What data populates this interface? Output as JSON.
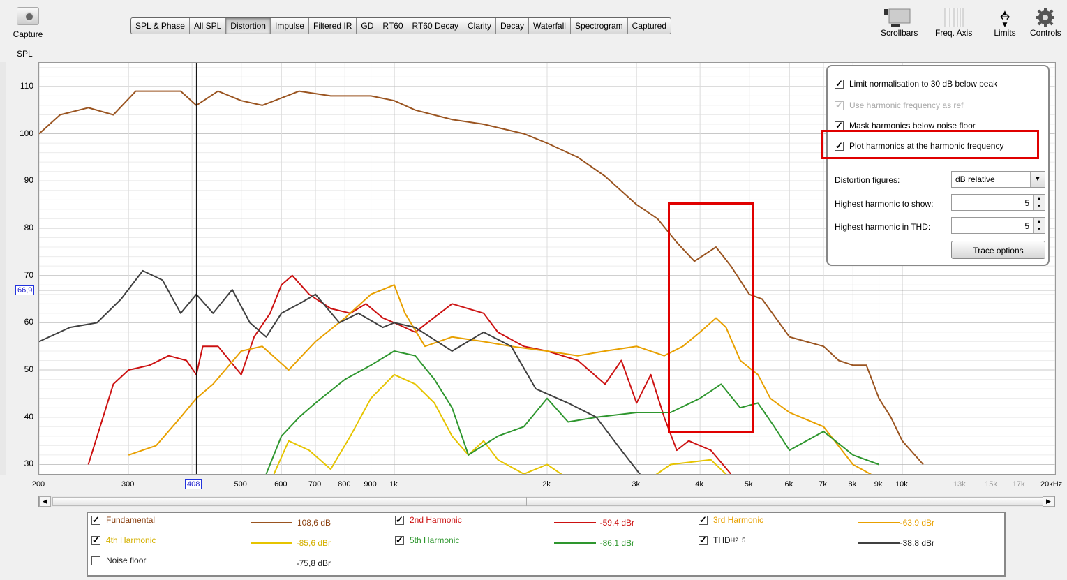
{
  "toolbar": {
    "capture_label": "Capture",
    "spl_axis_label": "SPL",
    "tabs": [
      "SPL & Phase",
      "All SPL",
      "Distortion",
      "Impulse",
      "Filtered IR",
      "GD",
      "RT60",
      "RT60 Decay",
      "Clarity",
      "Decay",
      "Waterfall",
      "Spectrogram",
      "Captured"
    ],
    "active_tab": "Distortion",
    "tools": [
      {
        "label": "Scrollbars",
        "icon": "scrollbars-icon"
      },
      {
        "label": "Freq. Axis",
        "icon": "freq-axis-icon"
      },
      {
        "label": "Limits",
        "icon": "limits-icon"
      },
      {
        "label": "Controls",
        "icon": "gear-icon"
      }
    ]
  },
  "axes": {
    "y_ticks": [
      "110",
      "100",
      "90",
      "80",
      "70",
      "60",
      "50",
      "40",
      "30"
    ],
    "x_ticks": [
      "200",
      "300",
      "500",
      "600",
      "700",
      "800",
      "900",
      "1k",
      "2k",
      "3k",
      "4k",
      "5k",
      "6k",
      "7k",
      "8k",
      "9k",
      "10k"
    ],
    "x_ticks_grey": [
      "13k",
      "15k",
      "17k"
    ],
    "x_unit_label": "20kHz",
    "cursor_x": "408",
    "cursor_y": "66,9"
  },
  "options": {
    "limit_norm": {
      "label": "Limit normalisation to 30 dB below peak",
      "checked": true
    },
    "use_harm_ref": {
      "label": "Use harmonic frequency as ref",
      "checked": true,
      "disabled": true
    },
    "mask_harm": {
      "label": "Mask harmonics below noise floor",
      "checked": true
    },
    "plot_harm": {
      "label": "Plot harmonics at the harmonic frequency",
      "checked": true
    },
    "dist_fig_label": "Distortion figures:",
    "dist_fig_value": "dB relative",
    "highest_show_label": "Highest harmonic to show:",
    "highest_show_value": "5",
    "highest_thd_label": "Highest harmonic in THD:",
    "highest_thd_value": "5",
    "trace_options": "Trace options"
  },
  "legend": [
    {
      "label": "Fundamental",
      "value": "108,6 dB",
      "color": "#9a5420",
      "checked": true
    },
    {
      "label": "2nd Harmonic",
      "value": "-59,4 dBr",
      "color": "#cc1111",
      "checked": true
    },
    {
      "label": "3rd Harmonic",
      "value": "-63,9 dBr",
      "color": "#e8a000",
      "checked": true
    },
    {
      "label": "4th Harmonic",
      "value": "-85,6 dBr",
      "color": "#e6c400",
      "checked": true
    },
    {
      "label": "5th Harmonic",
      "value": "-86,1 dBr",
      "color": "#2e962e",
      "checked": true
    },
    {
      "label": "THD",
      "label_sub": "H2..5",
      "value": "-38,8 dBr",
      "color": "#404040",
      "checked": true
    },
    {
      "label": "Noise floor",
      "value": "-75,8 dBr",
      "color": "#bbbbbb",
      "checked": false
    }
  ],
  "chart_data": {
    "type": "line",
    "xlabel": "",
    "ylabel": "SPL",
    "x_scale": "log",
    "xlim": [
      200,
      20000
    ],
    "ylim": [
      28,
      115
    ],
    "series": [
      {
        "name": "Fundamental",
        "color": "#9a5420",
        "x": [
          200,
          220,
          250,
          280,
          310,
          340,
          380,
          408,
          450,
          500,
          550,
          650,
          750,
          900,
          1000,
          1100,
          1300,
          1500,
          1800,
          2000,
          2300,
          2600,
          3000,
          3300,
          3600,
          3900,
          4300,
          4600,
          5000,
          5300,
          6000,
          7000,
          7500,
          8000,
          8500,
          9000,
          9500,
          10000,
          11000
        ],
        "y": [
          100,
          104,
          105.5,
          104,
          109,
          109,
          109,
          106,
          109,
          107,
          106,
          109,
          108,
          108,
          107,
          105,
          103,
          102,
          100,
          98,
          95,
          91,
          85,
          82,
          77,
          73,
          76,
          72,
          66,
          65,
          57,
          55,
          52,
          51,
          51,
          44,
          40,
          35,
          30
        ]
      },
      {
        "name": "2nd Harmonic",
        "color": "#cc1111",
        "x": [
          250,
          280,
          300,
          330,
          360,
          390,
          408,
          420,
          450,
          500,
          530,
          570,
          600,
          630,
          680,
          750,
          820,
          880,
          950,
          1000,
          1100,
          1300,
          1500,
          1600,
          1800,
          2000,
          2300,
          2600,
          2800,
          3000,
          3200,
          3400,
          3600,
          3800,
          4200,
          4600
        ],
        "y": [
          30,
          47,
          50,
          51,
          53,
          52,
          49,
          55,
          55,
          49,
          57,
          62,
          68,
          70,
          66,
          63,
          62,
          64,
          61,
          60,
          58,
          64,
          62,
          58,
          55,
          54,
          52,
          47,
          52,
          43,
          49,
          40,
          33,
          35,
          33,
          28
        ]
      },
      {
        "name": "3rd Harmonic",
        "color": "#e8a000",
        "x": [
          300,
          340,
          380,
          408,
          440,
          500,
          550,
          620,
          700,
          800,
          900,
          1000,
          1050,
          1150,
          1300,
          1500,
          1700,
          2000,
          2300,
          2600,
          3000,
          3400,
          3700,
          4000,
          4300,
          4500,
          4800,
          5200,
          5500,
          6000,
          7000,
          8000,
          9000,
          9500
        ],
        "y": [
          32,
          34,
          40,
          44,
          47,
          54,
          55,
          50,
          56,
          61,
          66,
          68,
          62,
          55,
          57,
          56,
          55,
          54,
          53,
          54,
          55,
          53,
          55,
          58,
          61,
          59,
          52,
          49,
          44,
          41,
          38,
          30,
          27,
          26
        ]
      },
      {
        "name": "4th Harmonic",
        "color": "#e6c400",
        "x": [
          580,
          620,
          680,
          750,
          820,
          900,
          1000,
          1100,
          1200,
          1300,
          1400,
          1500,
          1600,
          1800,
          2000,
          2200,
          3000,
          3500,
          4200,
          4600
        ],
        "y": [
          28,
          35,
          33,
          29,
          36,
          44,
          49,
          47,
          43,
          36,
          32,
          35,
          31,
          28,
          30,
          27,
          25,
          30,
          31,
          27
        ]
      },
      {
        "name": "5th Harmonic",
        "color": "#2e962e",
        "x": [
          560,
          600,
          650,
          700,
          800,
          900,
          1000,
          1100,
          1200,
          1300,
          1400,
          1600,
          1800,
          2000,
          2200,
          2500,
          3000,
          3500,
          4000,
          4400,
          4800,
          5200,
          5600,
          6000,
          7000,
          8000,
          9000
        ],
        "y": [
          28,
          36,
          40,
          43,
          48,
          51,
          54,
          53,
          48,
          42,
          32,
          36,
          38,
          44,
          39,
          40,
          41,
          41,
          44,
          47,
          42,
          43,
          38,
          33,
          37,
          32,
          30
        ]
      },
      {
        "name": "THD",
        "color": "#404040",
        "x": [
          200,
          230,
          260,
          290,
          320,
          350,
          380,
          408,
          440,
          480,
          520,
          560,
          600,
          650,
          700,
          780,
          850,
          950,
          1000,
          1100,
          1300,
          1500,
          1700,
          1900,
          2200,
          2500,
          2800,
          3200
        ],
        "y": [
          56,
          59,
          60,
          65,
          71,
          69,
          62,
          66,
          62,
          67,
          60,
          57,
          62,
          64,
          66,
          60,
          62,
          59,
          60,
          59,
          54,
          58,
          55,
          46,
          43,
          40,
          33,
          25
        ]
      }
    ]
  }
}
